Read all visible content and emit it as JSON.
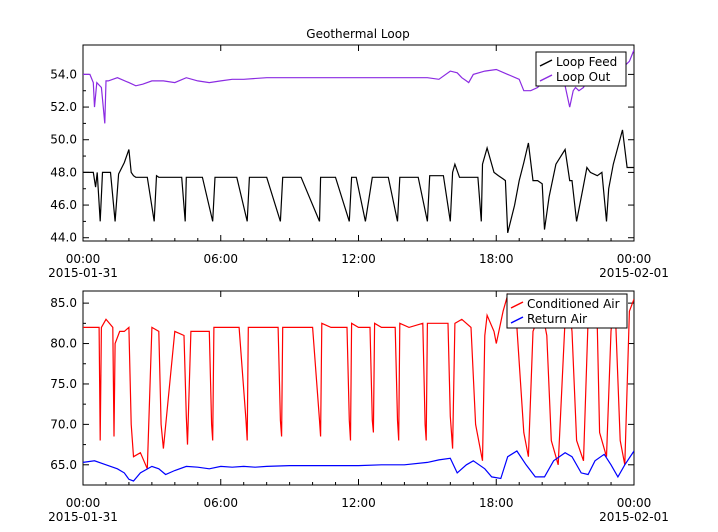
{
  "chart_data": [
    {
      "type": "line",
      "title": "Geothermal Loop",
      "xlabel": "",
      "ylabel": "",
      "x_ticks": [
        "00:00",
        "06:00",
        "12:00",
        "18:00",
        "00:00"
      ],
      "x_date_labels": [
        "2015-01-31",
        "2015-02-01"
      ],
      "x_range_hours": [
        0,
        24
      ],
      "ylim": [
        43.8,
        55.8
      ],
      "y_ticks": [
        44.0,
        46.0,
        48.0,
        50.0,
        52.0,
        54.0
      ],
      "legend": "top-right",
      "grid": false,
      "series": [
        {
          "name": "Loop Feed",
          "color": "#000000",
          "x": [
            0,
            0.45,
            0.55,
            0.62,
            0.75,
            0.85,
            1.2,
            1.4,
            1.55,
            1.8,
            2.0,
            2.1,
            2.2,
            2.3,
            2.5,
            2.8,
            3.1,
            3.2,
            3.3,
            3.5,
            3.9,
            4.3,
            4.45,
            4.5,
            4.6,
            4.7,
            5.2,
            5.65,
            5.75,
            5.8,
            6.0,
            6.7,
            7.15,
            7.25,
            7.3,
            7.5,
            8.0,
            8.6,
            8.7,
            8.75,
            8.9,
            9.5,
            10.3,
            10.35,
            10.4,
            10.6,
            11.0,
            11.6,
            11.7,
            11.75,
            11.9,
            12.3,
            12.6,
            12.7,
            12.75,
            12.9,
            13.3,
            13.7,
            13.8,
            13.85,
            14.0,
            14.6,
            15.0,
            15.1,
            15.15,
            15.3,
            15.7,
            16.0,
            16.1,
            16.2,
            16.4,
            16.8,
            17.2,
            17.35,
            17.4,
            17.6,
            17.9,
            18.1,
            18.3,
            18.4,
            18.5,
            18.8,
            19.0,
            19.2,
            19.4,
            19.6,
            19.8,
            20.0,
            20.1,
            20.3,
            20.6,
            21.0,
            21.2,
            21.3,
            21.5,
            21.8,
            21.95,
            22.1,
            22.4,
            22.6,
            22.8,
            22.9,
            23.1,
            23.5,
            23.7,
            23.8,
            23.9,
            24.0
          ],
          "y": [
            48.0,
            48.0,
            47.1,
            48.0,
            45.0,
            48.0,
            48.0,
            45.0,
            47.9,
            48.6,
            49.4,
            48.0,
            47.8,
            47.7,
            47.7,
            47.7,
            45.0,
            47.8,
            47.7,
            47.7,
            47.7,
            47.7,
            45.0,
            47.7,
            47.7,
            47.7,
            47.7,
            45.0,
            47.7,
            47.7,
            47.7,
            47.7,
            45.0,
            47.7,
            47.7,
            47.7,
            47.7,
            45.0,
            47.7,
            47.7,
            47.7,
            47.7,
            45.0,
            47.7,
            47.7,
            47.7,
            47.7,
            45.0,
            47.7,
            47.7,
            47.7,
            45.0,
            47.7,
            47.7,
            47.7,
            47.7,
            47.7,
            45.0,
            47.7,
            47.7,
            47.7,
            47.7,
            45.0,
            47.8,
            47.8,
            47.8,
            47.8,
            45.0,
            48.0,
            48.5,
            47.7,
            47.7,
            47.7,
            45.0,
            48.5,
            49.5,
            48.0,
            47.8,
            47.6,
            47.5,
            44.3,
            46.0,
            47.5,
            48.6,
            49.8,
            47.5,
            47.5,
            47.3,
            44.5,
            46.5,
            48.5,
            49.4,
            47.5,
            47.5,
            45.0,
            47.2,
            48.3,
            48.0,
            47.8,
            48.0,
            45.0,
            47.0,
            48.5,
            50.6,
            48.3,
            48.3,
            48.3,
            48.3
          ],
          "x_note": "hours since 2015-01-31 00:00"
        },
        {
          "name": "Loop Out",
          "color": "#8b2be2",
          "x": [
            0,
            0.3,
            0.45,
            0.5,
            0.6,
            0.8,
            0.95,
            1.0,
            1.1,
            1.5,
            2.0,
            2.3,
            2.6,
            3.0,
            3.5,
            4.0,
            4.5,
            5.0,
            5.5,
            6.0,
            6.5,
            7.0,
            8.0,
            9.0,
            10.0,
            11.0,
            12.0,
            13.0,
            14.0,
            15.0,
            15.5,
            16.0,
            16.3,
            16.5,
            16.7,
            16.8,
            17.0,
            17.5,
            18.0,
            18.5,
            19.0,
            19.2,
            19.5,
            19.8,
            20.0,
            20.5,
            21.0,
            21.2,
            21.35,
            21.45,
            21.6,
            21.8,
            22.0,
            22.5,
            23.0,
            23.5,
            23.8,
            24.0
          ],
          "y": [
            54.0,
            54.0,
            53.5,
            52.0,
            53.5,
            53.2,
            51.0,
            53.6,
            53.6,
            53.8,
            53.5,
            53.3,
            53.4,
            53.6,
            53.6,
            53.5,
            53.8,
            53.6,
            53.5,
            53.6,
            53.7,
            53.7,
            53.8,
            53.8,
            53.8,
            53.8,
            53.8,
            53.8,
            53.8,
            53.8,
            53.7,
            54.2,
            54.1,
            53.8,
            53.6,
            53.5,
            54.0,
            54.2,
            54.3,
            54.0,
            53.7,
            53.0,
            53.0,
            53.2,
            53.5,
            53.8,
            53.3,
            52.0,
            53.0,
            53.2,
            53.0,
            53.2,
            53.8,
            54.0,
            54.2,
            54.4,
            54.8,
            55.5
          ],
          "x_note": "hours since 2015-01-31 00:00"
        }
      ]
    },
    {
      "type": "line",
      "title": "",
      "xlabel": "",
      "ylabel": "",
      "x_ticks": [
        "00:00",
        "06:00",
        "12:00",
        "18:00",
        "00:00"
      ],
      "x_date_labels": [
        "2015-01-31",
        "2015-02-01"
      ],
      "x_range_hours": [
        0,
        24
      ],
      "ylim": [
        62.5,
        86.5
      ],
      "y_ticks": [
        65.0,
        70.0,
        75.0,
        80.0,
        85.0
      ],
      "legend": "top-right",
      "grid": false,
      "series": [
        {
          "name": "Conditioned Air",
          "color": "#ff0000",
          "x": [
            0,
            0.5,
            0.7,
            0.75,
            0.8,
            1.0,
            1.3,
            1.35,
            1.4,
            1.6,
            1.8,
            2.0,
            2.1,
            2.2,
            2.5,
            2.8,
            3.0,
            3.3,
            3.4,
            3.5,
            4.0,
            4.4,
            4.5,
            4.55,
            4.7,
            5.0,
            5.5,
            5.6,
            5.65,
            5.7,
            6.0,
            6.8,
            7.1,
            7.15,
            7.2,
            7.5,
            8.0,
            8.5,
            8.6,
            8.65,
            8.7,
            9.0,
            10.0,
            10.3,
            10.35,
            10.4,
            10.8,
            11.5,
            11.6,
            11.65,
            11.7,
            12.0,
            12.5,
            12.6,
            12.65,
            12.7,
            13.0,
            13.6,
            13.7,
            13.75,
            13.8,
            14.2,
            14.8,
            14.9,
            14.95,
            15.0,
            15.5,
            15.9,
            16.0,
            16.1,
            16.2,
            16.5,
            16.9,
            17.1,
            17.4,
            17.5,
            17.6,
            17.9,
            18.0,
            18.3,
            18.5,
            18.7,
            18.9,
            19.2,
            19.4,
            19.6,
            19.8,
            20.0,
            20.2,
            20.4,
            20.7,
            21.0,
            21.2,
            21.3,
            21.5,
            21.8,
            22.0,
            22.2,
            22.4,
            22.5,
            22.8,
            23.0,
            23.1,
            23.2,
            23.4,
            23.6,
            23.8,
            24.0
          ],
          "y": [
            82.0,
            82.0,
            82.0,
            68.0,
            82.0,
            83.0,
            82.0,
            68.5,
            80.0,
            81.5,
            81.5,
            82.0,
            70.0,
            66.0,
            66.5,
            64.5,
            82.0,
            81.5,
            70.0,
            67.0,
            81.5,
            81.0,
            71.0,
            67.5,
            81.5,
            81.5,
            81.5,
            70.0,
            68.0,
            82.0,
            82.0,
            82.0,
            70.5,
            68.0,
            82.0,
            82.0,
            82.0,
            82.0,
            70.5,
            68.5,
            82.0,
            82.0,
            82.0,
            70.5,
            68.5,
            82.5,
            82.0,
            82.0,
            70.5,
            68.0,
            82.5,
            82.0,
            82.0,
            70.5,
            69.0,
            82.5,
            82.0,
            82.0,
            70.5,
            68.0,
            82.5,
            82.0,
            82.5,
            70.0,
            68.0,
            82.5,
            82.5,
            82.5,
            71.0,
            67.0,
            82.5,
            83.0,
            82.0,
            70.0,
            65.5,
            81.0,
            83.5,
            81.5,
            80.0,
            84.0,
            86.0,
            84.0,
            82.0,
            69.0,
            66.0,
            81.5,
            83.0,
            84.0,
            81.0,
            68.0,
            65.0,
            83.0,
            84.0,
            81.5,
            68.0,
            65.5,
            83.0,
            83.5,
            82.0,
            69.0,
            66.0,
            81.5,
            84.5,
            83.0,
            68.0,
            65.0,
            84.0,
            85.5
          ],
          "x_note": "hours since 2015-01-31 00:00"
        },
        {
          "name": "Return Air",
          "color": "#0000ff",
          "x": [
            0,
            0.5,
            1.0,
            1.5,
            1.8,
            2.0,
            2.2,
            2.5,
            3.0,
            3.3,
            3.6,
            4.0,
            4.5,
            5.0,
            5.5,
            6.0,
            6.5,
            7.0,
            7.5,
            8.0,
            9.0,
            10.0,
            11.0,
            12.0,
            13.0,
            14.0,
            15.0,
            15.5,
            16.0,
            16.3,
            16.7,
            17.0,
            17.5,
            17.8,
            18.2,
            18.5,
            18.9,
            19.3,
            19.7,
            20.1,
            20.5,
            21.0,
            21.3,
            21.7,
            22.0,
            22.3,
            22.7,
            23.0,
            23.3,
            23.6,
            24.0
          ],
          "y": [
            65.3,
            65.5,
            65.0,
            64.5,
            64.0,
            63.2,
            63.0,
            64.0,
            64.8,
            64.5,
            63.8,
            64.3,
            64.8,
            64.7,
            64.5,
            64.8,
            64.7,
            64.8,
            64.7,
            64.8,
            64.9,
            64.9,
            64.9,
            64.9,
            65.0,
            65.0,
            65.3,
            65.6,
            65.8,
            64.0,
            65.0,
            65.5,
            64.5,
            63.5,
            63.3,
            66.0,
            66.7,
            65.0,
            63.5,
            63.5,
            65.5,
            66.5,
            66.0,
            64.0,
            63.8,
            65.5,
            66.3,
            65.0,
            63.5,
            65.0,
            66.7
          ],
          "x_note": "hours since 2015-01-31 00:00"
        }
      ]
    }
  ]
}
